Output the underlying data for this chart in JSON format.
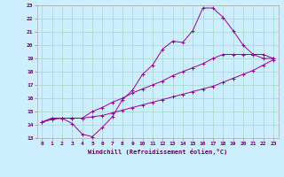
{
  "xlabel": "Windchill (Refroidissement éolien,°C)",
  "ylabel": "",
  "background_color": "#cceeff",
  "grid_color": "#aaddcc",
  "line_color": "#990099",
  "spine_color": "#aaaaaa",
  "xlim": [
    -0.5,
    23.5
  ],
  "ylim": [
    13,
    23
  ],
  "xticks": [
    0,
    1,
    2,
    3,
    4,
    5,
    6,
    7,
    8,
    9,
    10,
    11,
    12,
    13,
    14,
    15,
    16,
    17,
    18,
    19,
    20,
    21,
    22,
    23
  ],
  "yticks": [
    13,
    14,
    15,
    16,
    17,
    18,
    19,
    20,
    21,
    22,
    23
  ],
  "series": [
    {
      "x": [
        0,
        1,
        2,
        3,
        4,
        5,
        6,
        7,
        8,
        9,
        10,
        11,
        12,
        13,
        14,
        15,
        16,
        17,
        18,
        19,
        20,
        21,
        22,
        23
      ],
      "y": [
        14.2,
        14.5,
        14.5,
        14.1,
        13.3,
        13.1,
        13.8,
        14.6,
        15.9,
        16.6,
        17.8,
        18.5,
        19.7,
        20.3,
        20.2,
        21.1,
        22.8,
        22.8,
        22.1,
        21.1,
        20.0,
        19.3,
        19.3,
        19.0
      ]
    },
    {
      "x": [
        0,
        1,
        2,
        3,
        4,
        5,
        6,
        7,
        8,
        9,
        10,
        11,
        12,
        13,
        14,
        15,
        16,
        17,
        18,
        19,
        20,
        21,
        22,
        23
      ],
      "y": [
        14.2,
        14.5,
        14.5,
        14.5,
        14.5,
        15.0,
        15.3,
        15.7,
        16.0,
        16.4,
        16.7,
        17.0,
        17.3,
        17.7,
        18.0,
        18.3,
        18.6,
        19.0,
        19.3,
        19.3,
        19.3,
        19.3,
        19.0,
        19.0
      ]
    },
    {
      "x": [
        0,
        1,
        2,
        3,
        4,
        5,
        6,
        7,
        8,
        9,
        10,
        11,
        12,
        13,
        14,
        15,
        16,
        17,
        18,
        19,
        20,
        21,
        22,
        23
      ],
      "y": [
        14.2,
        14.4,
        14.5,
        14.5,
        14.5,
        14.6,
        14.7,
        14.9,
        15.1,
        15.3,
        15.5,
        15.7,
        15.9,
        16.1,
        16.3,
        16.5,
        16.7,
        16.9,
        17.2,
        17.5,
        17.8,
        18.1,
        18.5,
        18.9
      ]
    }
  ]
}
